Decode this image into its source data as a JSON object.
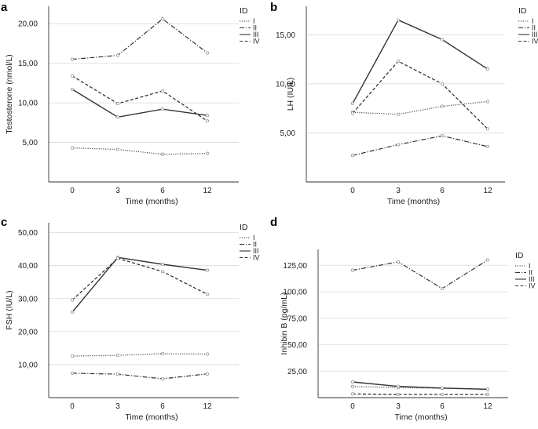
{
  "legend": {
    "title": "ID",
    "entries": [
      {
        "name": "I",
        "dash": "dotted"
      },
      {
        "name": "II",
        "dash": "dashdot"
      },
      {
        "name": "III",
        "dash": "solid"
      },
      {
        "name": "IV",
        "dash": "dashed"
      }
    ]
  },
  "chart_data": [
    {
      "panel": "a",
      "type": "line",
      "x": [
        0,
        3,
        6,
        12
      ],
      "x_tick_labels": [
        "0",
        "3",
        "6",
        "12"
      ],
      "xlabel": "Time (months)",
      "ylabel": "Testosterone (nmol/L)",
      "ylim": [
        0,
        22.2
      ],
      "yticks": [
        5,
        10,
        15,
        20
      ],
      "ytick_labels": [
        "5,00",
        "10,00",
        "15,00",
        "20,00"
      ],
      "legend_position": "top-right",
      "series": [
        {
          "name": "I",
          "values": [
            4.3,
            4.1,
            3.5,
            3.6
          ]
        },
        {
          "name": "II",
          "values": [
            15.5,
            16.0,
            20.6,
            16.3
          ]
        },
        {
          "name": "III",
          "values": [
            11.7,
            8.2,
            9.2,
            8.4
          ]
        },
        {
          "name": "IV",
          "values": [
            13.4,
            9.9,
            11.5,
            7.7
          ]
        }
      ]
    },
    {
      "panel": "b",
      "type": "line",
      "x": [
        0,
        3,
        6,
        12
      ],
      "x_tick_labels": [
        "0",
        "3",
        "6",
        "12"
      ],
      "xlabel": "Time (months)",
      "ylabel": "LH (IU/L)",
      "ylim": [
        0,
        17.9
      ],
      "yticks": [
        5,
        10,
        15
      ],
      "ytick_labels": [
        "5,00",
        "10,00",
        "15,00"
      ],
      "legend_position": "top-right",
      "series": [
        {
          "name": "I",
          "values": [
            7.1,
            6.9,
            7.7,
            8.2
          ]
        },
        {
          "name": "II",
          "values": [
            2.7,
            3.8,
            4.7,
            3.6
          ]
        },
        {
          "name": "III",
          "values": [
            8.0,
            16.5,
            14.5,
            11.5
          ]
        },
        {
          "name": "IV",
          "values": [
            7.0,
            12.3,
            10.0,
            5.4
          ]
        }
      ]
    },
    {
      "panel": "c",
      "type": "line",
      "x": [
        0,
        3,
        6,
        12
      ],
      "x_tick_labels": [
        "0",
        "3",
        "6",
        "12"
      ],
      "xlabel": "Time (months)",
      "ylabel": "FSH (IU/L)",
      "ylim": [
        0,
        53
      ],
      "yticks": [
        10,
        20,
        30,
        40,
        50
      ],
      "ytick_labels": [
        "10,00",
        "20,00",
        "30,00",
        "40,00",
        "50,00"
      ],
      "legend_position": "top-right",
      "series": [
        {
          "name": "I",
          "values": [
            12.6,
            12.8,
            13.3,
            13.2
          ]
        },
        {
          "name": "II",
          "values": [
            7.4,
            7.1,
            5.7,
            7.2
          ]
        },
        {
          "name": "III",
          "values": [
            25.9,
            42.5,
            40.4,
            38.6
          ]
        },
        {
          "name": "IV",
          "values": [
            29.6,
            42.2,
            38.2,
            31.3
          ]
        }
      ]
    },
    {
      "panel": "d",
      "type": "line",
      "x": [
        0,
        3,
        6,
        12
      ],
      "x_tick_labels": [
        "0",
        "3",
        "6",
        "12"
      ],
      "xlabel": "Time (months)",
      "ylabel": "Inhibin B (pg/mL)",
      "ylim": [
        0,
        140
      ],
      "yticks": [
        25,
        50,
        75,
        100,
        125
      ],
      "ytick_labels": [
        "25,00",
        "50,00",
        "75,00",
        "100,00",
        "125,00"
      ],
      "legend_position": "top-right",
      "series": [
        {
          "name": "I",
          "values": [
            10.5,
            9.5,
            8.8,
            7.8
          ]
        },
        {
          "name": "II",
          "values": [
            120.3,
            128.2,
            103.0,
            130.0
          ]
        },
        {
          "name": "III",
          "values": [
            14.8,
            10.6,
            9.0,
            7.9
          ]
        },
        {
          "name": "IV",
          "values": [
            3.5,
            3.0,
            3.0,
            3.0
          ]
        }
      ]
    }
  ]
}
